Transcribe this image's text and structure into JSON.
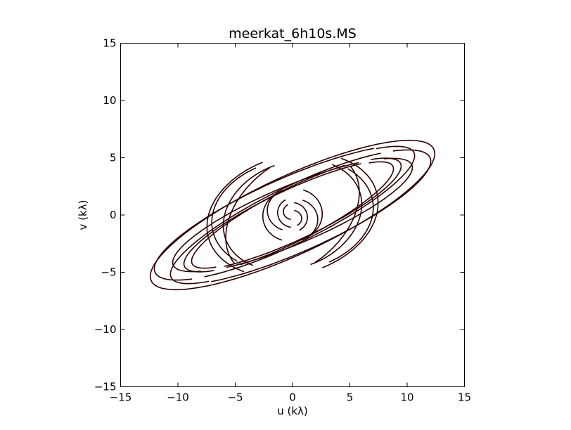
{
  "chart_data": {
    "type": "scatter",
    "title": "meerkat_6h10s.MS",
    "xlabel": "u (kλ)",
    "ylabel": "v (kλ)",
    "xlim": [
      -15,
      15
    ],
    "ylim": [
      -15,
      15
    ],
    "xticks": [
      -15,
      -10,
      -5,
      0,
      5,
      10,
      15
    ],
    "yticks": [
      -15,
      -10,
      -5,
      0,
      5,
      10,
      15
    ],
    "xtick_labels": [
      "−15",
      "−10",
      "−5",
      "0",
      "5",
      "10",
      "15"
    ],
    "ytick_labels": [
      "−15",
      "−10",
      "−5",
      "0",
      "5",
      "10",
      "15"
    ],
    "grid": false,
    "legend": "none",
    "mark_color": "#2b0000",
    "series": [
      {
        "tracks": [
          {
            "center": [
              0,
              0
            ],
            "radii": [
              13.6,
              3.4
            ],
            "rotation_deg": 25,
            "arc_deg": [
              -140,
              40
            ]
          },
          {
            "center": [
              0.3,
              -0.2
            ],
            "radii": [
              12.8,
              3.0
            ],
            "rotation_deg": 24,
            "arc_deg": [
              -135,
              38
            ]
          },
          {
            "center": [
              -0.2,
              0.2
            ],
            "radii": [
              12.0,
              2.7
            ],
            "rotation_deg": 26,
            "arc_deg": [
              -140,
              40
            ]
          },
          {
            "center": [
              0.1,
              0
            ],
            "radii": [
              11.2,
              2.5
            ],
            "rotation_deg": 23,
            "arc_deg": [
              -130,
              35
            ]
          },
          {
            "center": [
              0,
              0.1
            ],
            "radii": [
              10.4,
              2.3
            ],
            "rotation_deg": 25,
            "arc_deg": [
              -135,
              38
            ]
          },
          {
            "center": [
              0.2,
              -0.1
            ],
            "radii": [
              9.6,
              2.1
            ],
            "rotation_deg": 27,
            "arc_deg": [
              -130,
              35
            ]
          },
          {
            "center": [
              0,
              0
            ],
            "radii": [
              6.6,
              4.5
            ],
            "rotation_deg": 40,
            "arc_deg": [
              -100,
              0
            ]
          },
          {
            "center": [
              0,
              0
            ],
            "radii": [
              7.6,
              5.2
            ],
            "rotation_deg": 15,
            "arc_deg": [
              -80,
              45
            ]
          },
          {
            "center": [
              0,
              0
            ],
            "radii": [
              7.1,
              4.9
            ],
            "rotation_deg": 10,
            "arc_deg": [
              -70,
              40
            ]
          },
          {
            "center": [
              0,
              0
            ],
            "radii": [
              6.2,
              4.6
            ],
            "rotation_deg": 20,
            "arc_deg": [
              -90,
              40
            ]
          },
          {
            "center": [
              0,
              0
            ],
            "radii": [
              2.6,
              2.3
            ],
            "rotation_deg": 10,
            "arc_deg": [
              -80,
              60
            ]
          },
          {
            "center": [
              0.2,
              -0.4
            ],
            "radii": [
              2.0,
              1.8
            ],
            "rotation_deg": 0,
            "arc_deg": [
              -70,
              70
            ]
          },
          {
            "center": [
              -0.1,
              -0.2
            ],
            "radii": [
              1.4,
              1.3
            ],
            "rotation_deg": 0,
            "arc_deg": [
              -60,
              80
            ]
          },
          {
            "center": [
              0,
              -0.3
            ],
            "radii": [
              0.8,
              0.7
            ],
            "rotation_deg": 0,
            "arc_deg": [
              -60,
              80
            ]
          }
        ]
      }
    ]
  }
}
